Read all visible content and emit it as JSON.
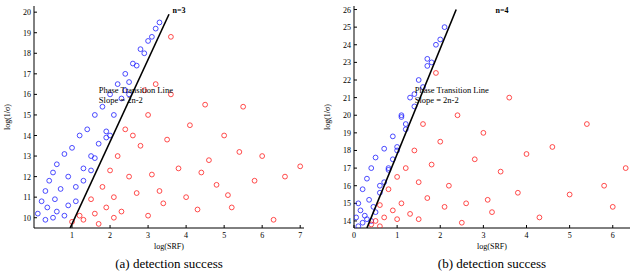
{
  "chart_data": [
    {
      "type": "scatter",
      "title": "n=3",
      "x_label": "log(SRF)",
      "y_label": "log(1/σ)",
      "caption": "(a) detection success",
      "annotations": [
        "Phase Transition Line",
        "Slope = 2n-2"
      ],
      "xlim": [
        0,
        7.1
      ],
      "ylim": [
        9.5,
        20.3
      ],
      "xticks": [
        1,
        2,
        3,
        4,
        5,
        6,
        7
      ],
      "yticks": [
        10,
        11,
        12,
        13,
        14,
        15,
        16,
        17,
        18,
        19,
        20
      ],
      "series": [
        {
          "type": "scatter",
          "color": "#1f1fff",
          "marker": "circle",
          "x": [
            0.1,
            0.2,
            0.3,
            0.35,
            0.4,
            0.5,
            0.55,
            0.6,
            0.7,
            0.8,
            0.9,
            1.0,
            1.1,
            1.2,
            1.3,
            1.4,
            1.5,
            1.6,
            1.7,
            1.8,
            1.9,
            2.0,
            2.1,
            2.2,
            2.3,
            2.4,
            2.5,
            2.6,
            2.7,
            2.8,
            2.9,
            3.0,
            3.1,
            3.2,
            0.6,
            0.9,
            1.3,
            1.6,
            2.0,
            2.4,
            0.3,
            0.5,
            0.8,
            1.1,
            1.5,
            1.9,
            2.5,
            3.3
          ],
          "values": [
            10.2,
            10.8,
            11.3,
            10.5,
            11.8,
            12.2,
            10.9,
            12.6,
            11.4,
            13.1,
            12.0,
            13.4,
            11.5,
            14.0,
            12.4,
            14.3,
            13.0,
            15.0,
            13.6,
            15.4,
            14.2,
            16.0,
            15.0,
            16.5,
            15.8,
            17.0,
            16.6,
            17.5,
            17.4,
            18.2,
            18.0,
            18.6,
            18.8,
            19.2,
            10.3,
            10.6,
            11.8,
            12.9,
            14.0,
            16.2,
            9.9,
            10.0,
            10.1,
            10.8,
            12.3,
            13.9,
            16.0,
            19.5
          ]
        },
        {
          "type": "scatter",
          "color": "#ff1f1f",
          "marker": "circle",
          "x": [
            1.0,
            1.2,
            1.3,
            1.5,
            1.6,
            1.8,
            1.9,
            2.0,
            2.1,
            2.2,
            2.3,
            2.5,
            2.6,
            2.7,
            2.8,
            3.0,
            3.1,
            3.2,
            3.4,
            3.5,
            3.6,
            3.8,
            4.0,
            4.1,
            4.3,
            4.5,
            4.6,
            4.8,
            5.0,
            5.2,
            5.4,
            5.5,
            5.8,
            6.0,
            6.3,
            6.6,
            7.0,
            2.4,
            2.9,
            3.3,
            1.7,
            2.1,
            3.6,
            4.4,
            5.1,
            3.0
          ],
          "values": [
            9.8,
            10.1,
            9.9,
            10.9,
            10.2,
            11.5,
            10.5,
            12.3,
            11.0,
            13.0,
            10.3,
            12.0,
            14.0,
            11.2,
            13.5,
            15.0,
            12.1,
            16.5,
            10.7,
            13.8,
            18.8,
            12.4,
            11.0,
            14.5,
            10.4,
            15.5,
            12.8,
            11.6,
            14.0,
            10.5,
            13.2,
            15.4,
            11.8,
            13.0,
            9.9,
            12.0,
            12.5,
            14.3,
            16.2,
            11.3,
            9.7,
            10.0,
            16.0,
            12.2,
            11.1,
            10.1
          ]
        },
        {
          "type": "line",
          "color": "#000000",
          "line_style": "solid",
          "x": [
            0.95,
            3.55
          ],
          "values": [
            9.5,
            19.9
          ]
        }
      ]
    },
    {
      "type": "scatter",
      "title": "n=4",
      "x_label": "log(SRF)",
      "y_label": "log(1/σ)",
      "caption": "(b) detection success",
      "annotations": [
        "Phase Transition Line",
        "Slope = 2n-2"
      ],
      "xlim": [
        0,
        6.4
      ],
      "ylim": [
        13.6,
        26.2
      ],
      "xticks": [
        0,
        1,
        2,
        3,
        4,
        5,
        6
      ],
      "yticks": [
        14,
        15,
        16,
        17,
        18,
        19,
        20,
        21,
        22,
        23,
        24,
        25,
        26
      ],
      "series": [
        {
          "type": "scatter",
          "color": "#1f1fff",
          "marker": "circle",
          "x": [
            0.05,
            0.1,
            0.15,
            0.2,
            0.25,
            0.3,
            0.35,
            0.4,
            0.45,
            0.5,
            0.6,
            0.7,
            0.8,
            0.9,
            1.0,
            1.1,
            1.2,
            1.3,
            1.4,
            1.5,
            1.6,
            1.7,
            1.8,
            1.9,
            2.0,
            2.1,
            0.2,
            0.4,
            0.6,
            0.8,
            1.0,
            1.2,
            0.1,
            0.3,
            0.5,
            0.7,
            0.9,
            1.1,
            1.4,
            1.7
          ],
          "values": [
            14.2,
            15.0,
            14.6,
            15.8,
            14.3,
            16.4,
            15.2,
            17.0,
            14.8,
            17.6,
            16.0,
            18.1,
            17.0,
            18.8,
            18.2,
            20.0,
            19.5,
            21.0,
            20.5,
            22.0,
            21.6,
            22.8,
            23.0,
            24.0,
            24.3,
            25.0,
            13.9,
            14.0,
            15.6,
            16.9,
            18.0,
            19.2,
            13.7,
            14.1,
            14.5,
            16.2,
            17.5,
            19.9,
            21.2,
            23.2
          ]
        },
        {
          "type": "scatter",
          "color": "#ff1f1f",
          "marker": "circle",
          "x": [
            0.4,
            0.5,
            0.6,
            0.7,
            0.8,
            0.9,
            1.0,
            1.1,
            1.2,
            1.3,
            1.4,
            1.5,
            1.6,
            1.7,
            1.8,
            1.9,
            2.0,
            2.2,
            2.4,
            2.6,
            2.8,
            3.0,
            3.2,
            3.4,
            3.6,
            3.8,
            4.0,
            4.3,
            4.6,
            5.0,
            5.4,
            5.8,
            6.0,
            6.3,
            1.5,
            2.1,
            2.5,
            3.1,
            0.6,
            1.0
          ],
          "values": [
            13.8,
            14.0,
            14.9,
            14.2,
            15.8,
            14.6,
            16.5,
            15.0,
            17.0,
            14.4,
            18.0,
            16.2,
            19.5,
            15.3,
            17.2,
            22.4,
            18.5,
            16.0,
            20.0,
            15.0,
            17.5,
            19.0,
            14.5,
            16.8,
            21.0,
            15.6,
            17.8,
            14.2,
            18.2,
            15.5,
            19.5,
            16.0,
            14.8,
            17.0,
            14.1,
            14.8,
            13.9,
            15.2,
            13.7,
            14.1
          ]
        },
        {
          "type": "line",
          "color": "#000000",
          "line_style": "solid",
          "x": [
            0.3,
            2.37
          ],
          "values": [
            13.6,
            26.0
          ]
        }
      ]
    }
  ]
}
